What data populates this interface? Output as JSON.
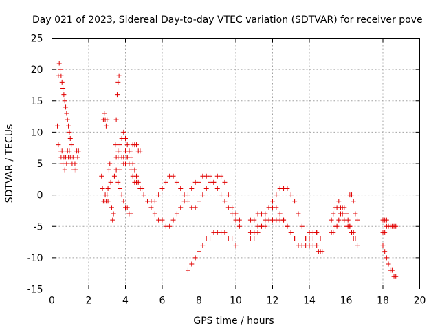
{
  "chart_data": {
    "type": "scatter",
    "title": "Day 021 of 2023, Sidereal Day-to-day VTEC variation (SDTVAR) for receiver pove",
    "xlabel": "GPS time / hours",
    "ylabel": "SDTVAR / TECUs",
    "xlim": [
      0,
      20
    ],
    "ylim": [
      -15,
      25
    ],
    "xticks": [
      0,
      2,
      4,
      6,
      8,
      10,
      12,
      14,
      16,
      18,
      20
    ],
    "yticks": [
      -15,
      -10,
      -5,
      0,
      5,
      10,
      15,
      20,
      25
    ],
    "grid": true,
    "marker": "plus",
    "series_color": "#e00000",
    "series": [
      {
        "name": "SDTVAR",
        "x": [
          0.3,
          0.35,
          0.4,
          0.45,
          0.5,
          0.55,
          0.6,
          0.65,
          0.7,
          0.75,
          0.8,
          0.85,
          0.9,
          0.95,
          1.0,
          1.05
        ],
        "y": [
          11,
          19,
          21,
          20,
          19,
          18,
          17,
          16,
          15,
          14,
          13,
          12,
          11,
          10,
          9,
          8
        ]
      },
      {
        "name": "SDTVAR",
        "x": [
          0.35,
          0.45,
          0.55,
          0.65,
          0.75,
          0.85,
          0.95,
          1.05,
          1.15,
          1.25,
          1.35,
          1.45
        ],
        "y": [
          8,
          7,
          7,
          6,
          6,
          7,
          7,
          6,
          6,
          5,
          7,
          7
        ]
      },
      {
        "name": "SDTVAR",
        "x": [
          0.5,
          0.6,
          0.7,
          0.8,
          0.9,
          1.0
        ],
        "y": [
          6,
          5,
          4,
          5,
          6,
          6
        ]
      },
      {
        "name": "SDTVAR",
        "x": [
          1.1,
          1.2,
          1.3,
          1.4
        ],
        "y": [
          5,
          4,
          4,
          6
        ]
      },
      {
        "name": "SDTVAR",
        "x": [
          2.7,
          2.75,
          2.8,
          2.85,
          2.9,
          2.95,
          3.0,
          3.05
        ],
        "y": [
          3,
          1,
          -1,
          -1,
          0,
          -1,
          0,
          -1
        ]
      },
      {
        "name": "SDTVAR",
        "x": [
          2.8,
          2.85,
          2.9,
          2.95,
          3.0
        ],
        "y": [
          12,
          13,
          12,
          11,
          12
        ]
      },
      {
        "name": "SDTVAR",
        "x": [
          3.05,
          3.1,
          3.15,
          3.2,
          3.25,
          3.3,
          3.35
        ],
        "y": [
          1,
          4,
          5,
          2,
          -2,
          -4,
          -3
        ]
      },
      {
        "name": "SDTVAR",
        "x": [
          3.4,
          3.45,
          3.5,
          3.55,
          3.6,
          3.65
        ],
        "y": [
          3,
          8,
          12,
          16,
          18,
          19
        ]
      },
      {
        "name": "SDTVAR",
        "x": [
          3.5,
          3.6,
          3.7,
          3.8,
          3.9,
          4.0,
          4.1,
          4.2,
          4.3,
          4.4,
          4.5,
          4.6,
          4.7,
          4.8
        ],
        "y": [
          4,
          6,
          8,
          9,
          10,
          9,
          8,
          7,
          7,
          8,
          8,
          8,
          7,
          7
        ]
      },
      {
        "name": "SDTVAR",
        "x": [
          3.7,
          3.8,
          3.9,
          4.0,
          4.1,
          4.2,
          4.3,
          4.4,
          4.5,
          4.6,
          4.7,
          4.8,
          4.9,
          5.0,
          5.2,
          5.4,
          5.6,
          5.8,
          6.0,
          6.2,
          6.4,
          6.6,
          6.8,
          7.0,
          7.2,
          7.4,
          7.6,
          7.8,
          8.0,
          8.2,
          8.4,
          8.6,
          8.8,
          9.0,
          9.2,
          9.4,
          9.6,
          9.8,
          10.0,
          10.2
        ],
        "y": [
          4,
          6,
          6,
          7,
          6,
          7,
          6,
          5,
          4,
          3,
          2,
          1,
          1,
          0,
          -1,
          -2,
          -3,
          -4,
          -4,
          -5,
          -5,
          -4,
          -3,
          -2,
          -1,
          0,
          1,
          2,
          2,
          3,
          3,
          3,
          2,
          1,
          0,
          -1,
          -2,
          -3,
          -4,
          -5
        ]
      },
      {
        "name": "SDTVAR",
        "x": [
          3.6,
          3.7,
          3.8,
          3.9,
          4.0,
          4.1,
          4.2,
          4.3
        ],
        "y": [
          2,
          1,
          0,
          -1,
          -2,
          -2,
          -3,
          -3
        ]
      },
      {
        "name": "SDTVAR",
        "x": [
          3.5,
          3.6,
          3.7,
          3.8,
          3.9,
          4.0,
          4.1,
          4.2,
          4.3,
          4.4,
          4.5,
          4.6,
          4.8,
          5.0,
          5.2,
          5.4,
          5.6,
          5.8,
          6.0,
          6.2,
          6.4,
          6.6,
          6.8,
          7.0,
          7.2,
          7.4,
          7.6,
          7.8,
          8.0,
          8.2,
          8.4,
          8.6,
          8.8,
          9.0,
          9.2,
          9.4,
          9.6,
          9.8,
          10.0,
          10.2
        ],
        "y": [
          6,
          7,
          7,
          6,
          5,
          5,
          6,
          5,
          4,
          3,
          2,
          2,
          1,
          0,
          -1,
          -1,
          -1,
          0,
          1,
          2,
          3,
          3,
          2,
          1,
          0,
          -1,
          -2,
          -2,
          -1,
          0,
          1,
          2,
          2,
          3,
          3,
          2,
          0,
          -2,
          -3,
          -4
        ]
      },
      {
        "name": "SDTVAR",
        "x": [
          7.4,
          7.6,
          7.8,
          8.0,
          8.2,
          8.4,
          8.6,
          8.8,
          9.0,
          9.2,
          9.4,
          9.6,
          9.8,
          10.0
        ],
        "y": [
          -12,
          -11,
          -10,
          -9,
          -8,
          -7,
          -7,
          -6,
          -6,
          -6,
          -6,
          -7,
          -7,
          -8
        ]
      },
      {
        "name": "SDTVAR",
        "x": [
          10.8,
          11.0,
          11.2,
          11.4,
          11.6,
          11.8,
          12.0,
          12.2,
          12.4,
          12.6,
          12.8,
          13.0,
          13.2,
          13.4,
          13.6,
          13.8,
          14.0,
          14.2,
          14.4
        ],
        "y": [
          -4,
          -4,
          -3,
          -3,
          -3,
          -2,
          -2,
          -2,
          -3,
          -4,
          -5,
          -6,
          -7,
          -8,
          -8,
          -8,
          -7,
          -7,
          -6
        ]
      },
      {
        "name": "SDTVAR",
        "x": [
          10.8,
          11.0,
          11.2,
          11.4,
          11.6,
          11.8,
          12.0,
          12.2,
          12.4,
          12.6,
          12.8,
          13.0,
          13.2,
          13.4,
          13.6,
          13.8,
          14.0,
          14.2,
          14.4,
          14.6
        ],
        "y": [
          -6,
          -6,
          -5,
          -5,
          -5,
          -4,
          -4,
          -4,
          -4,
          -4,
          -5,
          -6,
          -7,
          -8,
          -8,
          -7,
          -6,
          -6,
          -6,
          -7
        ]
      },
      {
        "name": "SDTVAR",
        "x": [
          10.8,
          11.0,
          11.2,
          11.4,
          11.6,
          11.8,
          12.0,
          12.2,
          12.4,
          12.6,
          12.8,
          13.0,
          13.2,
          13.4,
          13.6,
          13.8,
          14.0,
          14.2,
          14.4,
          14.6
        ],
        "y": [
          -7,
          -7,
          -6,
          -5,
          -4,
          -2,
          -1,
          0,
          1,
          1,
          1,
          0,
          -1,
          -3,
          -5,
          -7,
          -8,
          -8,
          -8,
          -7
        ]
      },
      {
        "name": "SDTVAR",
        "x": [
          14.5,
          14.6,
          14.7
        ],
        "y": [
          -9,
          -9,
          -9
        ]
      },
      {
        "name": "SDTVAR",
        "x": [
          15.2,
          15.3,
          15.4,
          15.5,
          15.6,
          15.7,
          15.8,
          15.9,
          16.0,
          16.1,
          16.2,
          16.3,
          16.4,
          16.5,
          16.6
        ],
        "y": [
          -4,
          -3,
          -2,
          -2,
          -1,
          -2,
          -3,
          -4,
          -5,
          -5,
          -5,
          -6,
          -6,
          -7,
          -8
        ]
      },
      {
        "name": "SDTVAR",
        "x": [
          15.2,
          15.3,
          15.4,
          15.5,
          15.6,
          15.7,
          15.8,
          15.9,
          16.0,
          16.1,
          16.2,
          16.3,
          16.4,
          16.5,
          16.6
        ],
        "y": [
          -6,
          -6,
          -5,
          -5,
          -4,
          -3,
          -2,
          -2,
          -3,
          -4,
          -5,
          -6,
          -7,
          -7,
          -8
        ]
      },
      {
        "name": "SDTVAR",
        "x": [
          16.2,
          16.3,
          16.4,
          16.5,
          16.6
        ],
        "y": [
          0,
          0,
          -1,
          -3,
          -4
        ]
      },
      {
        "name": "SDTVAR",
        "x": [
          18.0,
          18.1,
          18.2,
          18.3,
          18.4,
          18.5,
          18.6,
          18.7
        ],
        "y": [
          -4,
          -4,
          -4,
          -5,
          -5,
          -5,
          -5,
          -5
        ]
      },
      {
        "name": "SDTVAR",
        "x": [
          18.0,
          18.1,
          18.2,
          18.3,
          18.4,
          18.5,
          18.6,
          18.7
        ],
        "y": [
          -8,
          -9,
          -10,
          -11,
          -12,
          -12,
          -13,
          -13
        ]
      },
      {
        "name": "SDTVAR",
        "x": [
          18.0,
          18.1,
          18.2
        ],
        "y": [
          -6,
          -6,
          -5
        ]
      }
    ]
  }
}
